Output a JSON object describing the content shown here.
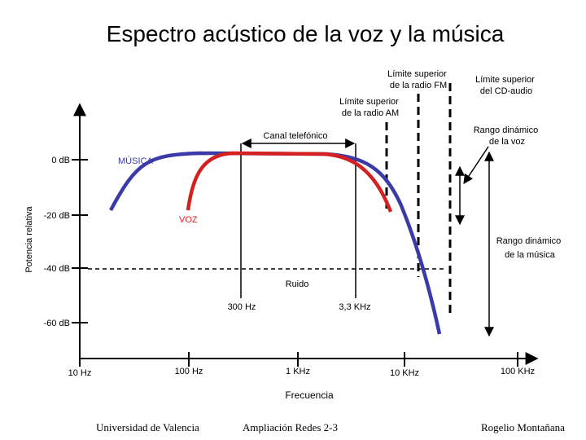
{
  "title": "Espectro acústico de la voz y la música",
  "axes": {
    "y_label": "Potencia relativa",
    "x_label": "Frecuencia",
    "y_ticks": [
      "0 dB",
      "-20 dB",
      "-40 dB",
      "-60 dB"
    ],
    "x_ticks": [
      "10 Hz",
      "100 Hz",
      "1 KHz",
      "10 KHz",
      "100 KHz"
    ]
  },
  "annotations": {
    "fm_limit": [
      "Límite superior",
      "de la radio FM"
    ],
    "cd_limit": [
      "Límite superior",
      "del CD-audio"
    ],
    "am_limit": [
      "Límite superior",
      "de la radio AM"
    ],
    "voice_range": [
      "Rango dinámico",
      "de la voz"
    ],
    "music_range": [
      "Rango dinámico",
      "de la música"
    ],
    "phone_channel": "Canal telefónico",
    "noise": "Ruido",
    "phone_low": "300 Hz",
    "phone_high": "3,3 KHz"
  },
  "curves": {
    "music": {
      "label": "MÚSICA",
      "color": "#3a3aa8"
    },
    "voice": {
      "label": "VOZ",
      "color": "#d42020"
    }
  },
  "footer": {
    "left": "Universidad de Valencia",
    "center": "Ampliación Redes 2-3",
    "right": "Rogelio Montañana"
  }
}
